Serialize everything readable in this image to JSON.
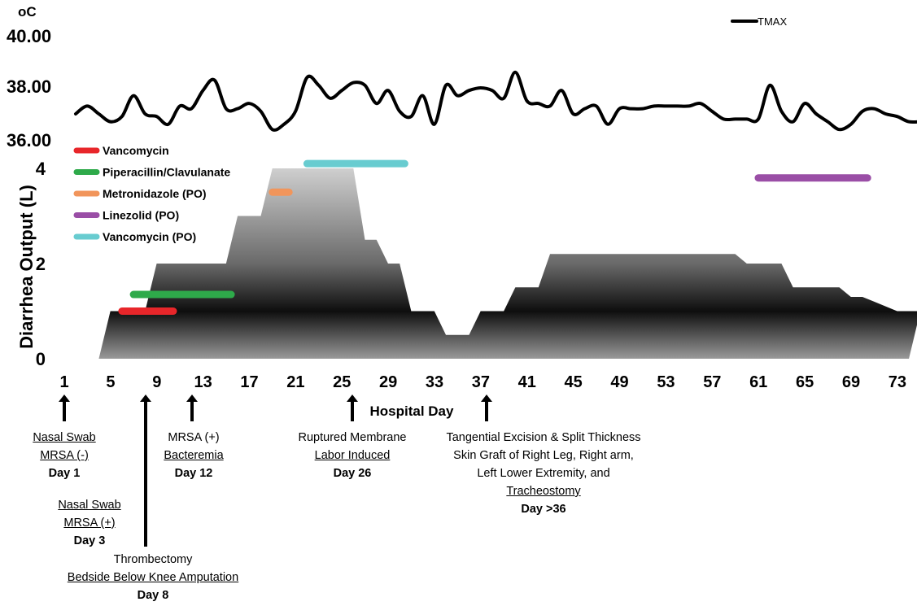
{
  "temp_panel": {
    "unit_label": "oC",
    "y_ticks": [
      "40.00",
      "38.00",
      "36.00"
    ],
    "y_tick_values": [
      40,
      38,
      36
    ],
    "legend": "TMAX"
  },
  "chart_data": [
    {
      "type": "line",
      "title": "",
      "ylabel": "oC",
      "ylim": [
        36,
        40
      ],
      "series": [
        {
          "name": "TMAX",
          "x": [
            1,
            2,
            3,
            4,
            5,
            6,
            7,
            8,
            9,
            10,
            11,
            12,
            13,
            14,
            15,
            16,
            17,
            18,
            19,
            20,
            21,
            22,
            23,
            24,
            25,
            26,
            27,
            28,
            29,
            30,
            31,
            32,
            33,
            34,
            35,
            36,
            37,
            38,
            39,
            40,
            41,
            42,
            43,
            44,
            45,
            46,
            47,
            48,
            49,
            50,
            51,
            52,
            53,
            54,
            55,
            56,
            57,
            58,
            59,
            60,
            61,
            62,
            63,
            64,
            65,
            66,
            67,
            68,
            69,
            70,
            71,
            72,
            73,
            74
          ],
          "y": [
            37.0,
            37.3,
            37.0,
            36.7,
            36.9,
            37.7,
            37.0,
            36.9,
            36.6,
            37.3,
            37.2,
            37.9,
            38.3,
            37.2,
            37.2,
            37.4,
            37.1,
            36.4,
            36.6,
            37.1,
            38.4,
            38.1,
            37.6,
            37.9,
            38.2,
            38.1,
            37.4,
            37.9,
            37.1,
            36.9,
            37.7,
            36.6,
            38.1,
            37.7,
            37.9,
            38.0,
            37.9,
            37.6,
            38.6,
            37.5,
            37.4,
            37.3,
            37.9,
            37.0,
            37.2,
            37.3,
            36.6,
            37.2,
            37.2,
            37.2,
            37.3,
            37.3,
            37.3,
            37.3,
            37.4,
            37.1,
            36.8,
            36.8,
            36.8,
            36.8,
            38.1,
            37.1,
            36.7,
            37.4,
            37.0,
            36.7,
            36.4,
            36.6,
            37.1,
            37.2,
            37.0,
            36.9,
            36.7,
            36.7
          ]
        }
      ]
    },
    {
      "type": "area",
      "title": "",
      "xlabel": "Hospital Day",
      "ylabel": "Diarrhea Output (L)",
      "ylim": [
        0,
        4
      ],
      "y_ticks": [
        "0",
        "2",
        "4"
      ],
      "x_ticks": [
        "1",
        "5",
        "9",
        "13",
        "17",
        "21",
        "25",
        "29",
        "33",
        "37",
        "41",
        "45",
        "49",
        "53",
        "57",
        "61",
        "65",
        "69",
        "73"
      ],
      "series": [
        {
          "x": [
            1,
            2,
            3,
            4,
            5,
            6,
            7,
            8,
            9,
            10,
            11,
            12,
            13,
            14,
            15,
            16,
            17,
            18,
            19,
            20,
            21,
            22,
            23,
            24,
            25,
            26,
            27,
            28,
            29,
            30,
            31,
            32,
            33,
            34,
            35,
            36,
            37,
            38,
            39,
            40,
            41,
            42,
            43,
            44,
            45,
            46,
            47,
            48,
            49,
            50,
            51,
            52,
            53,
            54,
            55,
            56,
            57,
            58,
            59,
            60,
            61,
            62,
            63,
            64,
            65,
            66,
            67,
            68,
            69,
            70,
            71,
            72,
            73,
            74
          ],
          "y": [
            0,
            0,
            0,
            1,
            1,
            1,
            1,
            2,
            2,
            2,
            2,
            2,
            2,
            2,
            3,
            3,
            3,
            4,
            4,
            4,
            4,
            4,
            4,
            4,
            4,
            2.5,
            2.5,
            2,
            2,
            1,
            1,
            1,
            0.5,
            0.5,
            0.5,
            1,
            1,
            1,
            1.5,
            1.5,
            1.5,
            2.2,
            2.2,
            2.2,
            2.2,
            2.2,
            2.2,
            2.2,
            2.2,
            2.2,
            2.2,
            2.2,
            2.2,
            2.2,
            2.2,
            2.2,
            2.2,
            2.2,
            2,
            2,
            2,
            2,
            1.5,
            1.5,
            1.5,
            1.5,
            1.5,
            1.3,
            1.3,
            1.2,
            1.1,
            1,
            1,
            1
          ]
        }
      ],
      "drug_bars": [
        {
          "name": "Vancomycin",
          "color": "#e8262a",
          "start": 5,
          "end": 10
        },
        {
          "name": "Piperacillin/Clavulanate",
          "color": "#2eaa4a",
          "start": 6,
          "end": 15
        },
        {
          "name": "Metronidazole (PO)",
          "color": "#f1955b",
          "start": 18,
          "end": 20
        },
        {
          "name": "Linezolid (PO)",
          "color": "#9a4ea6",
          "start": 60,
          "end": 70
        },
        {
          "name": "Vancomycin (PO)",
          "color": "#68ccd0",
          "start": 21,
          "end": 30
        }
      ]
    }
  ],
  "annotations": [
    {
      "day": 1,
      "lines": [
        "Nasal Swab",
        "MRSA (-)"
      ],
      "bold": "Day 1"
    },
    {
      "day": 3,
      "lines": [
        "Nasal Swab",
        "MRSA (+)"
      ],
      "bold": "Day 3"
    },
    {
      "day": 8,
      "plain": "Thrombectomy",
      "lines": [
        "Bedside Below Knee Amputation"
      ],
      "bold": "Day 8"
    },
    {
      "day": 12,
      "plain": "MRSA (+)",
      "lines": [
        "Bacteremia"
      ],
      "bold": "Day 12"
    },
    {
      "day": 26,
      "plain": "Ruptured Membrane",
      "lines": [
        "Labor Induced"
      ],
      "bold": "Day 26"
    },
    {
      "day": 37,
      "plain_lines": [
        "Tangential Excision & Split Thickness",
        "Skin Graft of Right Leg, Right arm,",
        "Left Lower Extremity, and"
      ],
      "lines": [
        "Tracheostomy"
      ],
      "bold": "Day >36"
    }
  ],
  "colors": {
    "axis": "#000000",
    "area_dark": "#000000",
    "area_light": "#c8c8c8"
  }
}
